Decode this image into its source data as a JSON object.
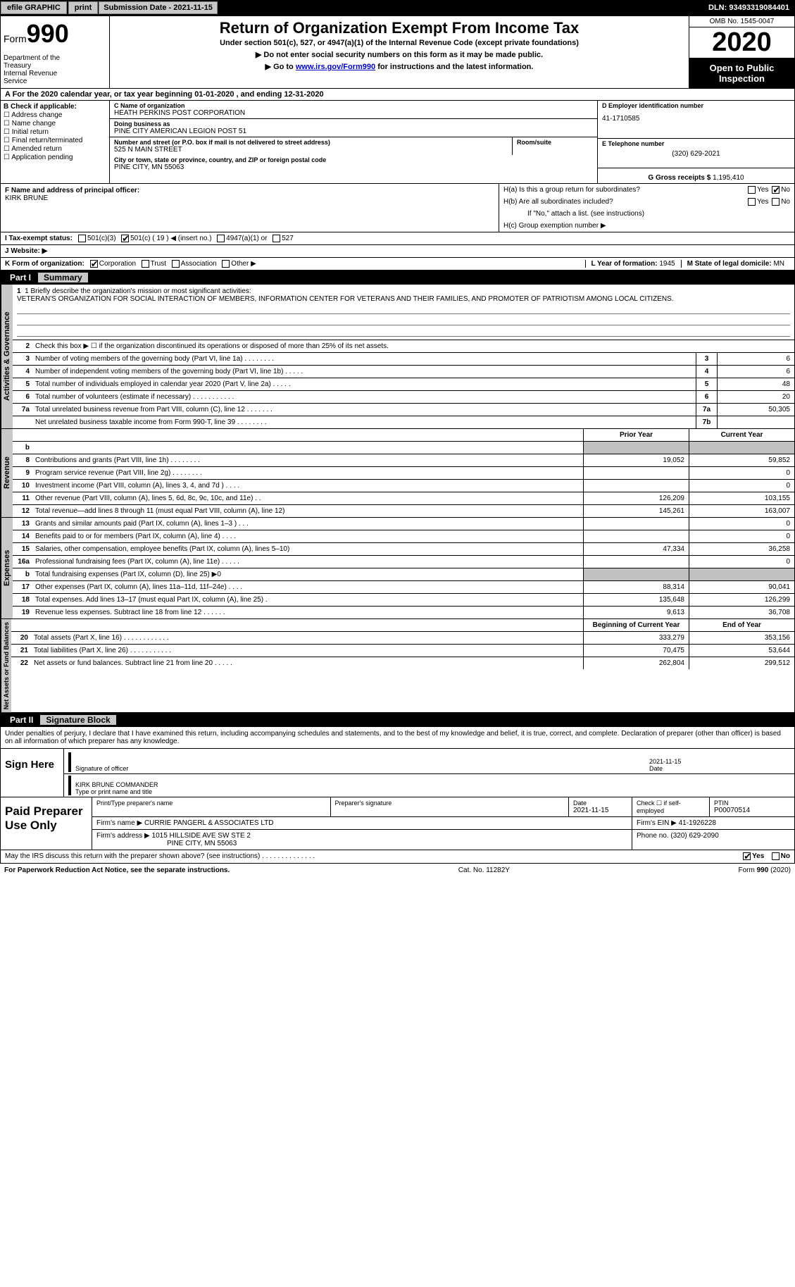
{
  "topbar": {
    "efile_label": "efile GRAPHIC",
    "print_label": "print",
    "submission_label": "Submission Date - 2021-11-15",
    "dln": "DLN: 93493319084401"
  },
  "header": {
    "form_word": "Form",
    "form_num": "990",
    "dept": "Department of the Treasury\nInternal Revenue Service",
    "title": "Return of Organization Exempt From Income Tax",
    "subtitle": "Under section 501(c), 527, or 4947(a)(1) of the Internal Revenue Code (except private foundations)",
    "instr1": "▶ Do not enter social security numbers on this form as it may be made public.",
    "instr2_pre": "▶ Go to ",
    "instr2_link": "www.irs.gov/Form990",
    "instr2_post": " for instructions and the latest information.",
    "omb": "OMB No. 1545-0047",
    "taxyear": "2020",
    "open_public": "Open to Public Inspection"
  },
  "period": "A For the 2020 calendar year, or tax year beginning 01-01-2020   , and ending 12-31-2020",
  "box_b": {
    "title": "B Check if applicable:",
    "items": [
      "Address change",
      "Name change",
      "Initial return",
      "Final return/terminated",
      "Amended return",
      "Application pending"
    ]
  },
  "box_c": {
    "label": "C Name of organization",
    "org": "HEATH PERKINS POST CORPORATION",
    "dba_label": "Doing business as",
    "dba": "PINE CITY AMERICAN LEGION POST 51",
    "street_label": "Number and street (or P.O. box if mail is not delivered to street address)",
    "street": "525 N MAIN STREET",
    "room_label": "Room/suite",
    "city_label": "City or town, state or province, country, and ZIP or foreign postal code",
    "city": "PINE CITY, MN  55063"
  },
  "box_d": {
    "label": "D Employer identification number",
    "value": "41-1710585"
  },
  "box_e": {
    "label": "E Telephone number",
    "value": "(320) 629-2021"
  },
  "box_g": {
    "label": "G Gross receipts $",
    "value": "1,195,410"
  },
  "box_f": {
    "label": "F Name and address of principal officer:",
    "value": "KIRK BRUNE"
  },
  "box_h": {
    "ha": "H(a)  Is this a group return for subordinates?",
    "hb": "H(b)  Are all subordinates included?",
    "hb_note": "If \"No,\" attach a list. (see instructions)",
    "hc": "H(c)  Group exemption number ▶",
    "yes": "Yes",
    "no": "No"
  },
  "box_i": {
    "label": "I    Tax-exempt status:",
    "opts": [
      "501(c)(3)",
      "501(c) ( 19 ) ◀ (insert no.)",
      "4947(a)(1) or",
      "527"
    ],
    "checked_index": 1
  },
  "box_j": {
    "label": "J    Website: ▶"
  },
  "box_k": {
    "label": "K Form of organization:",
    "opts": [
      "Corporation",
      "Trust",
      "Association",
      "Other ▶"
    ],
    "checked_index": 0
  },
  "box_l": {
    "label": "L Year of formation:",
    "value": "1945"
  },
  "box_m": {
    "label": "M State of legal domicile:",
    "value": "MN"
  },
  "part1": {
    "label": "Part I",
    "title": "Summary"
  },
  "vert": {
    "gov": "Activities & Governance",
    "rev": "Revenue",
    "exp": "Expenses",
    "net": "Net Assets or Fund Balances"
  },
  "mission": {
    "line1_label": "1   Briefly describe the organization's mission or most significant activities:",
    "text": "VETERAN'S ORGANIZATION FOR SOCIAL INTERACTION OF MEMBERS, INFORMATION CENTER FOR VETERANS AND THEIR FAMILIES, AND PROMOTER OF PATRIOTISM AMONG LOCAL CITIZENS."
  },
  "gov_rows": [
    {
      "n": "2",
      "desc": "Check this box ▶ ☐  if the organization discontinued its operations or disposed of more than 25% of its net assets.",
      "box": "",
      "val": ""
    },
    {
      "n": "3",
      "desc": "Number of voting members of the governing body (Part VI, line 1a)   .    .    .    .    .    .    .    .",
      "box": "3",
      "val": "6"
    },
    {
      "n": "4",
      "desc": "Number of independent voting members of the governing body (Part VI, line 1b)   .    .    .    .    .",
      "box": "4",
      "val": "6"
    },
    {
      "n": "5",
      "desc": "Total number of individuals employed in calendar year 2020 (Part V, line 2a)   .    .    .    .    .",
      "box": "5",
      "val": "48"
    },
    {
      "n": "6",
      "desc": "Total number of volunteers (estimate if necessary)   .    .    .    .    .    .    .    .    .    .    .",
      "box": "6",
      "val": "20"
    },
    {
      "n": "7a",
      "desc": "Total unrelated business revenue from Part VIII, column (C), line 12   .    .    .    .    .    .    .",
      "box": "7a",
      "val": "50,305"
    },
    {
      "n": "",
      "desc": "Net unrelated business taxable income from Form 990-T, line 39   .    .    .    .    .    .    .    .",
      "box": "7b",
      "val": ""
    }
  ],
  "fin_head": {
    "prior": "Prior Year",
    "current": "Current Year"
  },
  "rev_rows": [
    {
      "n": "b",
      "desc": "",
      "prior": "",
      "current": "",
      "shaded": true
    },
    {
      "n": "8",
      "desc": "Contributions and grants (Part VIII, line 1h)   .    .    .    .    .    .    .    .",
      "prior": "19,052",
      "current": "59,852"
    },
    {
      "n": "9",
      "desc": "Program service revenue (Part VIII, line 2g)   .    .    .    .    .    .    .    .",
      "prior": "",
      "current": "0"
    },
    {
      "n": "10",
      "desc": "Investment income (Part VIII, column (A), lines 3, 4, and 7d )   .    .    .    .",
      "prior": "",
      "current": "0"
    },
    {
      "n": "11",
      "desc": "Other revenue (Part VIII, column (A), lines 5, 6d, 8c, 9c, 10c, and 11e)   .    .",
      "prior": "126,209",
      "current": "103,155"
    },
    {
      "n": "12",
      "desc": "Total revenue—add lines 8 through 11 (must equal Part VIII, column (A), line 12)",
      "prior": "145,261",
      "current": "163,007"
    }
  ],
  "exp_rows": [
    {
      "n": "13",
      "desc": "Grants and similar amounts paid (Part IX, column (A), lines 1–3 )   .    .    .",
      "prior": "",
      "current": "0"
    },
    {
      "n": "14",
      "desc": "Benefits paid to or for members (Part IX, column (A), line 4)   .    .    .    .",
      "prior": "",
      "current": "0"
    },
    {
      "n": "15",
      "desc": "Salaries, other compensation, employee benefits (Part IX, column (A), lines 5–10)",
      "prior": "47,334",
      "current": "36,258"
    },
    {
      "n": "16a",
      "desc": "Professional fundraising fees (Part IX, column (A), line 11e)   .    .    .    .    .",
      "prior": "",
      "current": "0"
    },
    {
      "n": "b",
      "desc": "Total fundraising expenses (Part IX, column (D), line 25) ▶0",
      "prior": "",
      "current": "",
      "shaded": true
    },
    {
      "n": "17",
      "desc": "Other expenses (Part IX, column (A), lines 11a–11d, 11f–24e)   .    .    .    .",
      "prior": "88,314",
      "current": "90,041"
    },
    {
      "n": "18",
      "desc": "Total expenses. Add lines 13–17 (must equal Part IX, column (A), line 25)   .",
      "prior": "135,648",
      "current": "126,299"
    },
    {
      "n": "19",
      "desc": "Revenue less expenses. Subtract line 18 from line 12   .    .    .    .    .    .",
      "prior": "9,613",
      "current": "36,708"
    }
  ],
  "net_head": {
    "begin": "Beginning of Current Year",
    "end": "End of Year"
  },
  "net_rows": [
    {
      "n": "20",
      "desc": "Total assets (Part X, line 16)   .    .    .    .    .    .    .    .    .    .    .    .",
      "prior": "333,279",
      "current": "353,156"
    },
    {
      "n": "21",
      "desc": "Total liabilities (Part X, line 26)   .    .    .    .    .    .    .    .    .    .    .",
      "prior": "70,475",
      "current": "53,644"
    },
    {
      "n": "22",
      "desc": "Net assets or fund balances. Subtract line 21 from line 20   .    .    .    .    .",
      "prior": "262,804",
      "current": "299,512"
    }
  ],
  "part2": {
    "label": "Part II",
    "title": "Signature Block"
  },
  "penalties": "Under penalties of perjury, I declare that I have examined this return, including accompanying schedules and statements, and to the best of my knowledge and belief, it is true, correct, and complete. Declaration of preparer (other than officer) is based on all information of which preparer has any knowledge.",
  "sign": {
    "here": "Sign Here",
    "sig_officer": "Signature of officer",
    "date_label": "Date",
    "sig_date": "2021-11-15",
    "name": "KIRK BRUNE COMMANDER",
    "name_label": "Type or print name and title"
  },
  "paid": {
    "title": "Paid Preparer Use Only",
    "print_label": "Print/Type preparer's name",
    "sig_label": "Preparer's signature",
    "date_label": "Date",
    "date": "2021-11-15",
    "self_label": "Check ☐ if self-employed",
    "ptin_label": "PTIN",
    "ptin": "P00070514",
    "firm_name_label": "Firm's name    ▶",
    "firm_name": "CURRIE PANGERL & ASSOCIATES LTD",
    "firm_ein_label": "Firm's EIN ▶",
    "firm_ein": "41-1926228",
    "firm_addr_label": "Firm's address ▶",
    "firm_addr1": "1015 HILLSIDE AVE SW STE 2",
    "firm_addr2": "PINE CITY, MN  55063",
    "phone_label": "Phone no.",
    "phone": "(320) 629-2090"
  },
  "discuss": {
    "text": "May the IRS discuss this return with the preparer shown above? (see instructions)   .    .    .    .    .    .    .    .    .    .    .    .    .    .",
    "yes": "Yes",
    "no": "No"
  },
  "footer": {
    "pra": "For Paperwork Reduction Act Notice, see the separate instructions.",
    "cat": "Cat. No. 11282Y",
    "form": "Form 990 (2020)"
  }
}
